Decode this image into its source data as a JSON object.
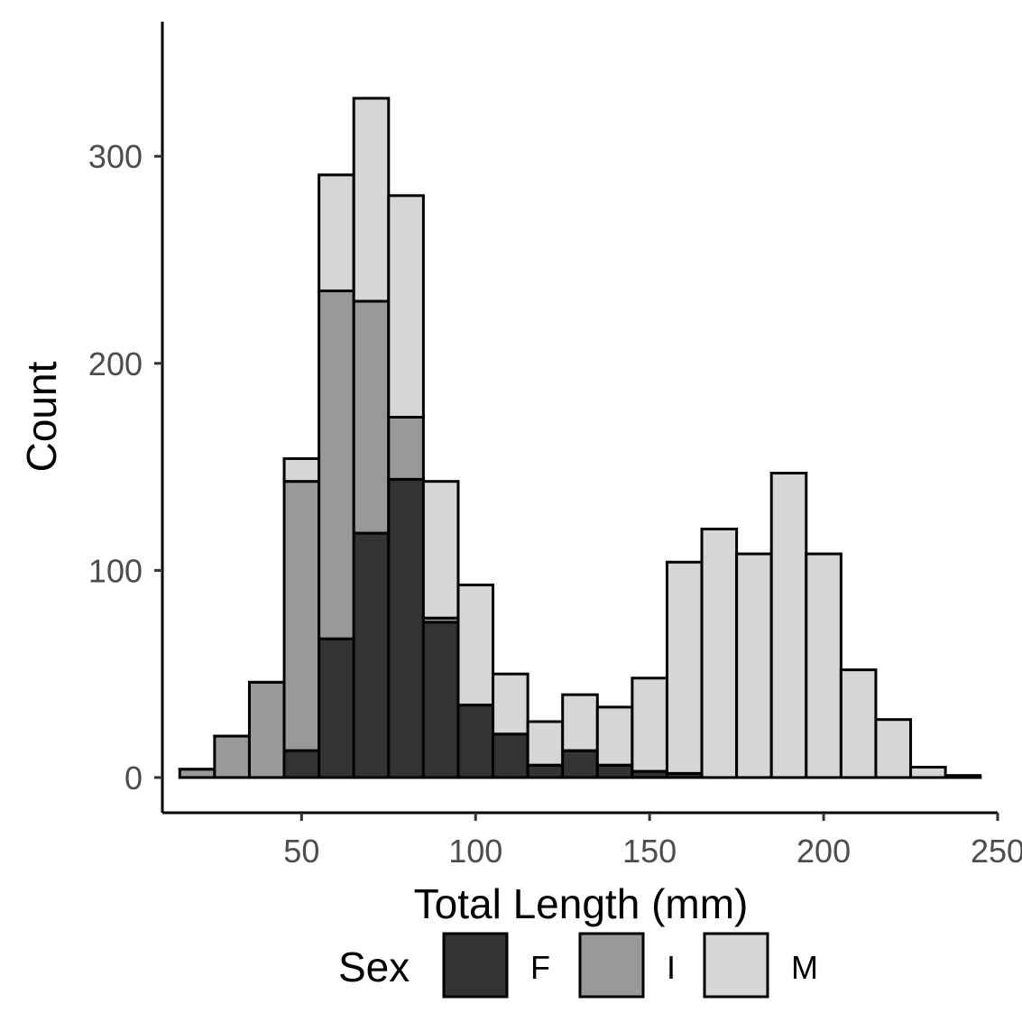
{
  "chart_data": {
    "type": "bar",
    "stacked": true,
    "xlabel": "Total Length (mm)",
    "ylabel": "Count",
    "xlim": [
      10,
      250
    ],
    "ylim": [
      -17,
      365
    ],
    "x_ticks": [
      50,
      100,
      150,
      200,
      250
    ],
    "y_ticks": [
      0,
      100,
      200,
      300
    ],
    "grid": false,
    "legend_position": "bottom",
    "legend_title": "Sex",
    "bin_width": 10,
    "bins": [
      20,
      30,
      40,
      50,
      60,
      70,
      80,
      90,
      100,
      110,
      120,
      130,
      140,
      150,
      160,
      170,
      180,
      190,
      200,
      210,
      220,
      230,
      240
    ],
    "series": [
      {
        "name": "F",
        "color": "#333333",
        "values": [
          0,
          0,
          0,
          13,
          67,
          118,
          144,
          75,
          35,
          21,
          6,
          13,
          6,
          3,
          2,
          0,
          0,
          0,
          0,
          0,
          0,
          0,
          0
        ]
      },
      {
        "name": "I",
        "color": "#999999",
        "values": [
          4,
          20,
          46,
          130,
          168,
          112,
          30,
          2,
          0,
          0,
          0,
          0,
          0,
          0,
          0,
          0,
          0,
          0,
          0,
          0,
          0,
          0,
          0
        ]
      },
      {
        "name": "M",
        "color": "#d6d6d6",
        "values": [
          0,
          0,
          0,
          11,
          56,
          98,
          107,
          66,
          58,
          29,
          21,
          27,
          28,
          45,
          102,
          120,
          108,
          147,
          108,
          52,
          28,
          5,
          1
        ]
      }
    ]
  }
}
